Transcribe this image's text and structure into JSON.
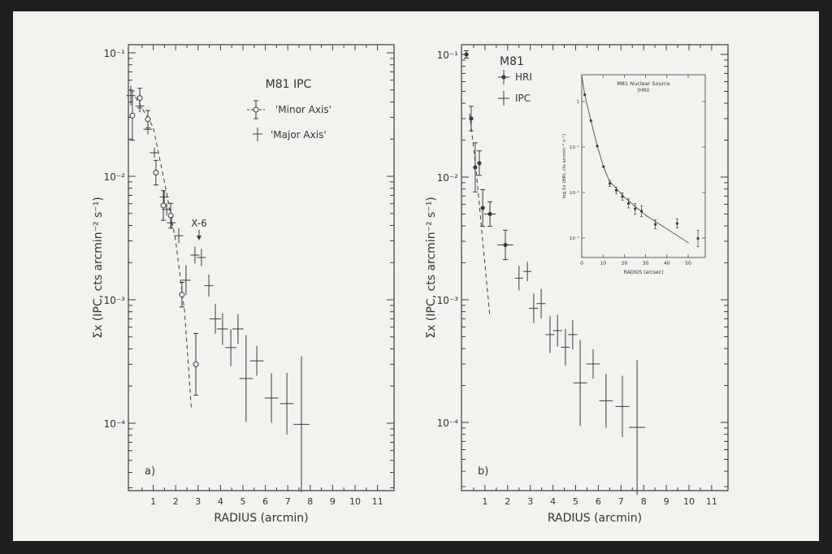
{
  "chart_data": [
    {
      "type": "scatter",
      "panel_label": "a)",
      "title": "M81 IPC",
      "xlabel": "RADIUS (arcmin)",
      "ylabel": "Σx (IPC, cts arcmin⁻² s⁻¹)",
      "x_ticks": [
        "1",
        "2",
        "3",
        "4",
        "5",
        "6",
        "7",
        "8",
        "9",
        "10",
        "11"
      ],
      "y_ticks": [
        "10⁻¹",
        "10⁻²",
        "10⁻³",
        "10⁻⁴"
      ],
      "xlim": [
        0,
        11.8
      ],
      "ylim": [
        2.8e-05,
        0.12
      ],
      "y_scale": "log",
      "grid": false,
      "legend_position": "top-right",
      "annotation": {
        "text": "X-6",
        "x": 3.0,
        "arrow": "down"
      },
      "series": [
        {
          "name": "'Minor Axis'",
          "marker": "open-circle-with-errorbar",
          "points_format": [
            "radius_arcmin",
            "sigma",
            "yerr_dex",
            "xerr_arcmin"
          ],
          "points": [
            [
              0.07,
              0.031,
              0.2,
              0
            ],
            [
              0.4,
              0.043,
              0.08,
              0
            ],
            [
              0.76,
              0.029,
              0.07,
              0
            ],
            [
              1.12,
              0.0107,
              0.1,
              0
            ],
            [
              1.45,
              0.0058,
              0.12,
              0
            ],
            [
              1.78,
              0.0048,
              0.1,
              0
            ],
            [
              2.28,
              0.0011,
              0.1,
              0
            ],
            [
              2.9,
              0.0003,
              0.25,
              0
            ]
          ]
        },
        {
          "name": "'Major Axis'",
          "marker": "cross",
          "points_format": [
            "radius_arcmin",
            "sigma",
            "yerr_dex",
            "xerr_arcmin"
          ],
          "points": [
            [
              0,
              0.045,
              0.08,
              0.2
            ],
            [
              0.4,
              0.037,
              0.05,
              0.2
            ],
            [
              0.76,
              0.024,
              0.04,
              0.2
            ],
            [
              1.05,
              0.0155,
              0.04,
              0.2
            ],
            [
              1.49,
              0.0068,
              0.05,
              0.2
            ],
            [
              1.6,
              0.0054,
              0.05,
              0.2
            ],
            [
              1.81,
              0.0042,
              0.05,
              0.2
            ],
            [
              2.14,
              0.0033,
              0.06,
              0.2
            ],
            [
              2.46,
              0.00144,
              0.12,
              0.2
            ],
            [
              2.86,
              0.0023,
              0.07,
              0.2
            ],
            [
              3.15,
              0.0022,
              0.07,
              0.2
            ],
            [
              3.48,
              0.0013,
              0.09,
              0.2
            ],
            [
              3.77,
              0.0007,
              0.12,
              0.25
            ],
            [
              4.09,
              0.00058,
              0.13,
              0.25
            ],
            [
              4.46,
              0.00041,
              0.15,
              0.25
            ],
            [
              4.78,
              0.00058,
              0.12,
              0.25
            ],
            [
              5.14,
              0.00023,
              0.35,
              0.3
            ],
            [
              5.62,
              0.00032,
              0.12,
              0.3
            ],
            [
              6.27,
              0.00016,
              0.2,
              0.3
            ],
            [
              6.96,
              0.000144,
              0.25,
              0.3
            ],
            [
              7.61,
              9.8e-05,
              0.55,
              0.35
            ]
          ]
        }
      ],
      "model_curve": {
        "style": "dashed",
        "points": [
          [
            0.2,
            0.044
          ],
          [
            1.0,
            0.025
          ],
          [
            1.5,
            0.009
          ],
          [
            2.0,
            0.003
          ],
          [
            2.4,
            0.0008
          ],
          [
            2.7,
            0.00013
          ]
        ]
      }
    },
    {
      "type": "scatter",
      "panel_label": "b)",
      "title": "M81",
      "xlabel": "RADIUS (arcmin)",
      "ylabel": "Σx (IPC, cts arcmin⁻² s⁻¹)",
      "x_ticks": [
        "1",
        "2",
        "3",
        "4",
        "5",
        "6",
        "7",
        "8",
        "9",
        "10",
        "11"
      ],
      "y_ticks": [
        "10⁻¹",
        "10⁻²",
        "10⁻³",
        "10⁻⁴"
      ],
      "xlim": [
        0,
        11.8
      ],
      "ylim": [
        2.8e-05,
        0.12
      ],
      "y_scale": "log",
      "grid": false,
      "legend_position": "top-left",
      "series": [
        {
          "name": "HRI",
          "marker": "filled-circle-with-errorbar",
          "points_format": [
            "radius_arcmin",
            "sigma",
            "yerr_dex",
            "xerr_arcmin"
          ],
          "points": [
            [
              0.18,
              0.1,
              0.03,
              0.05
            ],
            [
              0.39,
              0.03,
              0.1,
              0
            ],
            [
              0.57,
              0.012,
              0.2,
              0
            ],
            [
              0.75,
              0.013,
              0.1,
              0
            ],
            [
              0.9,
              0.0056,
              0.15,
              0
            ],
            [
              1.22,
              0.005,
              0.1,
              0.25
            ],
            [
              1.9,
              0.0028,
              0.12,
              0.35
            ]
          ]
        },
        {
          "name": "IPC",
          "marker": "cross",
          "points_format": [
            "radius_arcmin",
            "sigma",
            "yerr_dex",
            "xerr_arcmin"
          ],
          "points": [
            [
              2.5,
              0.0015,
              0.1,
              0.15
            ],
            [
              2.87,
              0.0017,
              0.08,
              0.15
            ],
            [
              3.15,
              0.00085,
              0.12,
              0.2
            ],
            [
              3.48,
              0.00093,
              0.12,
              0.2
            ],
            [
              3.87,
              0.00052,
              0.15,
              0.2
            ],
            [
              4.2,
              0.00056,
              0.13,
              0.2
            ],
            [
              4.55,
              0.00041,
              0.15,
              0.2
            ],
            [
              4.87,
              0.00052,
              0.12,
              0.2
            ],
            [
              5.2,
              0.00021,
              0.35,
              0.3
            ],
            [
              5.77,
              0.0003,
              0.12,
              0.3
            ],
            [
              6.34,
              0.00015,
              0.22,
              0.3
            ],
            [
              7.06,
              0.000135,
              0.25,
              0.3
            ],
            [
              7.71,
              9.1e-05,
              0.55,
              0.35
            ]
          ]
        }
      ],
      "model_curve": {
        "style": "dashed",
        "points": [
          [
            0.32,
            0.033
          ],
          [
            0.6,
            0.012
          ],
          [
            0.9,
            0.003
          ],
          [
            1.22,
            0.00072
          ]
        ]
      }
    },
    {
      "type": "scatter",
      "inset_of": "b)",
      "title": "M81 Nuclear Source",
      "subtitle": "(HRI)",
      "xlabel": "RADIUS (arcsec)",
      "ylabel": "log Σx (HRI, cts arcmin⁻² s⁻¹)",
      "x_ticks": [
        "0",
        "10",
        "20",
        "30",
        "40",
        "50"
      ],
      "y_ticks": [
        "1",
        "10⁻¹",
        "10⁻²",
        "10⁻³"
      ],
      "xlim": [
        0,
        57.5
      ],
      "ylim_log10": [
        -3.45,
        0.6
      ],
      "y_scale": "log",
      "grid": false,
      "series": [
        {
          "marker": "filled-circle-with-errorbar",
          "points_format": [
            "radius_arcsec",
            "log10_sigma",
            "yerr_dex"
          ],
          "points": [
            [
              1.4,
              0.15,
              0
            ],
            [
              4.3,
              -0.42,
              0
            ],
            [
              7.3,
              -0.98,
              0
            ],
            [
              10.2,
              -1.43,
              0
            ],
            [
              13.2,
              -1.8,
              0.07
            ],
            [
              16.2,
              -1.95,
              0.07
            ],
            [
              19.1,
              -2.09,
              0.08
            ],
            [
              22.0,
              -2.24,
              0.1
            ],
            [
              25.1,
              -2.36,
              0.12
            ],
            [
              28.1,
              -2.41,
              0.12
            ],
            [
              34.6,
              -2.7,
              0.1
            ],
            [
              44.8,
              -2.68,
              0.1
            ],
            [
              54.6,
              -3.01,
              0.18
            ]
          ]
        }
      ],
      "model_curve": {
        "style": "solid",
        "points": [
          [
            0,
            0.57
          ],
          [
            1.4,
            0.15
          ],
          [
            4.3,
            -0.42
          ],
          [
            7.3,
            -0.98
          ],
          [
            10.2,
            -1.43
          ],
          [
            13,
            -1.75
          ],
          [
            20,
            -2.1
          ],
          [
            30,
            -2.5
          ],
          [
            40,
            -2.8
          ],
          [
            50.3,
            -3.11
          ]
        ]
      }
    }
  ]
}
